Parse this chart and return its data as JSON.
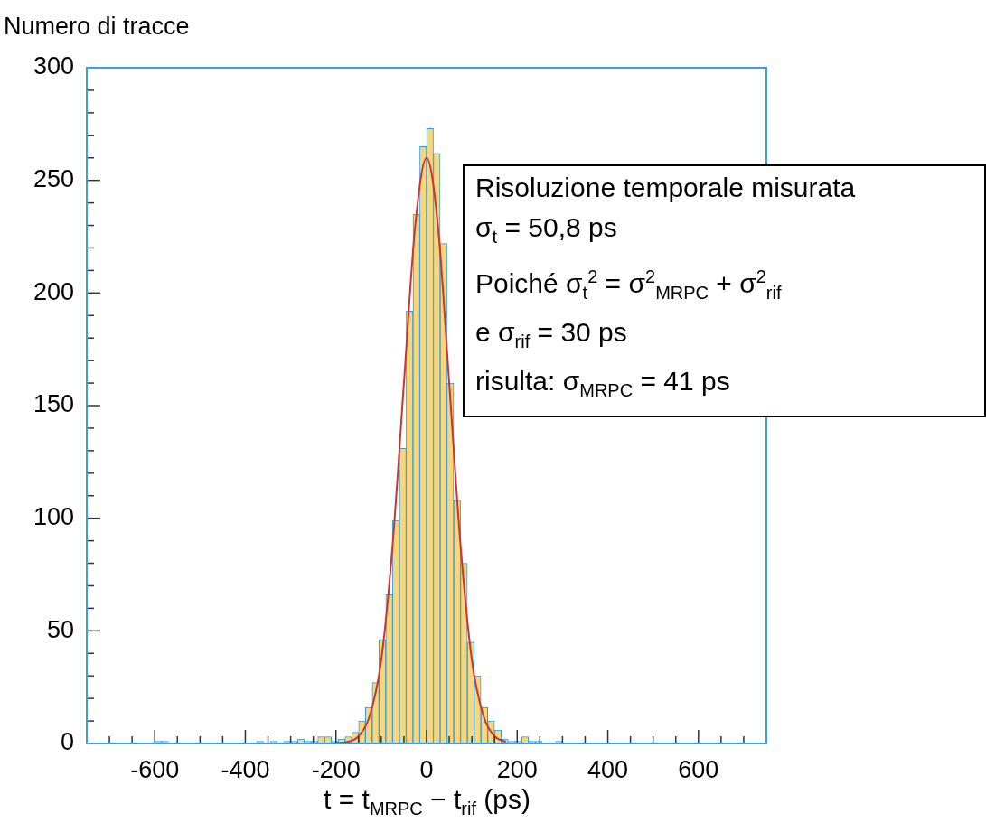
{
  "chart_data": {
    "type": "histogram",
    "ylabel": "Numero di tracce",
    "xlabel": "t  =  t$_{MRPC}$  −  t$_{rif}$  (ps)",
    "xlim": [
      -750,
      750
    ],
    "xticks": [
      {
        "value": -700,
        "label": null
      },
      {
        "value": -650,
        "label": null
      },
      -600,
      {
        "value": -550,
        "label": null
      },
      {
        "value": -500,
        "label": null
      },
      {
        "value": -450,
        "label": null
      },
      -400,
      {
        "value": -350,
        "label": null
      },
      {
        "value": -300,
        "label": null
      },
      {
        "value": -250,
        "label": null
      },
      -200,
      {
        "value": -150,
        "label": null
      },
      {
        "value": -100,
        "label": null
      },
      {
        "value": -50,
        "label": null
      },
      0,
      {
        "value": 50,
        "label": null
      },
      {
        "value": 100,
        "label": null
      },
      {
        "value": 150,
        "label": null
      },
      200,
      {
        "value": 250,
        "label": null
      },
      {
        "value": 300,
        "label": null
      },
      {
        "value": 350,
        "label": null
      },
      400,
      {
        "value": 450,
        "label": null
      },
      {
        "value": 500,
        "label": null
      },
      {
        "value": 550,
        "label": null
      },
      600,
      {
        "value": 650,
        "label": null
      },
      {
        "value": 700,
        "label": null
      }
    ],
    "ylim": [
      0,
      300
    ],
    "yticks": [
      0,
      {
        "value": 10,
        "label": null
      },
      {
        "value": 20,
        "label": null
      },
      {
        "value": 30,
        "label": null
      },
      {
        "value": 40,
        "label": null
      },
      50,
      {
        "value": 60,
        "label": null
      },
      {
        "value": 70,
        "label": null
      },
      {
        "value": 80,
        "label": null
      },
      {
        "value": 90,
        "label": null
      },
      100,
      {
        "value": 110,
        "label": null
      },
      {
        "value": 120,
        "label": null
      },
      {
        "value": 130,
        "label": null
      },
      {
        "value": 140,
        "label": null
      },
      150,
      {
        "value": 160,
        "label": null
      },
      {
        "value": 170,
        "label": null
      },
      {
        "value": 180,
        "label": null
      },
      {
        "value": 190,
        "label": null
      },
      200,
      {
        "value": 210,
        "label": null
      },
      {
        "value": 220,
        "label": null
      },
      {
        "value": 230,
        "label": null
      },
      {
        "value": 240,
        "label": null
      },
      250,
      {
        "value": 260,
        "label": null
      },
      {
        "value": 270,
        "label": null
      },
      {
        "value": 280,
        "label": null
      },
      {
        "value": 290,
        "label": null
      },
      300
    ],
    "legend": false,
    "series": [
      {
        "type": "histogram",
        "color": "#fad67a",
        "bins": [
          -750,
          -735,
          -720,
          -705,
          -690,
          -675,
          -660,
          -645,
          -630,
          -615,
          -600,
          -585,
          -570,
          -555,
          -540,
          -525,
          -510,
          -495,
          -480,
          -465,
          -450,
          -435,
          -420,
          -405,
          -390,
          -375,
          -360,
          -345,
          -330,
          -315,
          -300,
          -285,
          -270,
          -255,
          -240,
          -225,
          -210,
          -195,
          -180,
          -165,
          -150,
          -135,
          -120,
          -105,
          -90,
          -75,
          -60,
          -45,
          -30,
          -15,
          0,
          15,
          30,
          45,
          60,
          75,
          90,
          105,
          120,
          135,
          150,
          165,
          180,
          195,
          210,
          225,
          240,
          255,
          270,
          285,
          300,
          315,
          330,
          345,
          360,
          375,
          390,
          405,
          420,
          435,
          450,
          465,
          480,
          495,
          510,
          525,
          540,
          555,
          570,
          585,
          600,
          615,
          630,
          645,
          660,
          675,
          690,
          705,
          720,
          735,
          750
        ],
        "values": [
          0,
          0,
          0,
          0,
          0,
          0,
          0,
          0,
          0,
          0,
          1,
          1,
          0,
          0,
          0,
          0,
          0,
          0,
          0,
          0,
          0,
          0,
          0,
          0,
          0,
          1,
          0,
          1,
          0,
          1,
          1,
          2,
          1,
          1,
          3,
          3,
          1,
          2,
          3,
          5,
          10,
          16,
          27,
          46,
          66,
          99,
          131,
          192,
          235,
          265,
          273,
          262,
          222,
          160,
          108,
          80,
          45,
          30,
          16,
          10,
          6,
          2,
          1,
          1,
          3,
          1,
          1,
          0,
          0,
          1,
          0,
          0,
          0,
          0,
          0,
          0,
          0,
          0,
          0,
          0,
          0,
          0,
          0,
          0,
          0,
          0,
          0,
          0,
          0,
          0,
          0,
          0,
          0,
          0,
          0,
          0,
          0,
          0,
          0,
          0
        ]
      },
      {
        "type": "line",
        "color": "#cc3333",
        "x": [
          -200,
          -175,
          -150,
          -125,
          -100,
          -75,
          -50,
          -25,
          0,
          25,
          50,
          75,
          100,
          125,
          150,
          175
        ],
        "values": [
          0.2,
          0.7,
          3.3,
          12.6,
          37,
          88,
          160,
          230,
          260,
          230,
          160,
          88,
          37,
          12.6,
          3.3,
          0.7
        ]
      }
    ],
    "annotations": [
      "Risoluzione temporale misurata",
      "σ$_{t}$ = 50,8 ps",
      "Poiché σ$_{t}$$^{2}$ = σ$^{2}$$_{MRPC}$ + σ$^{2}$$_{rif}$",
      "e σ$_{rif}$ = 30 ps",
      "risulta: σ$_{MRPC}$ = 41 ps"
    ]
  }
}
